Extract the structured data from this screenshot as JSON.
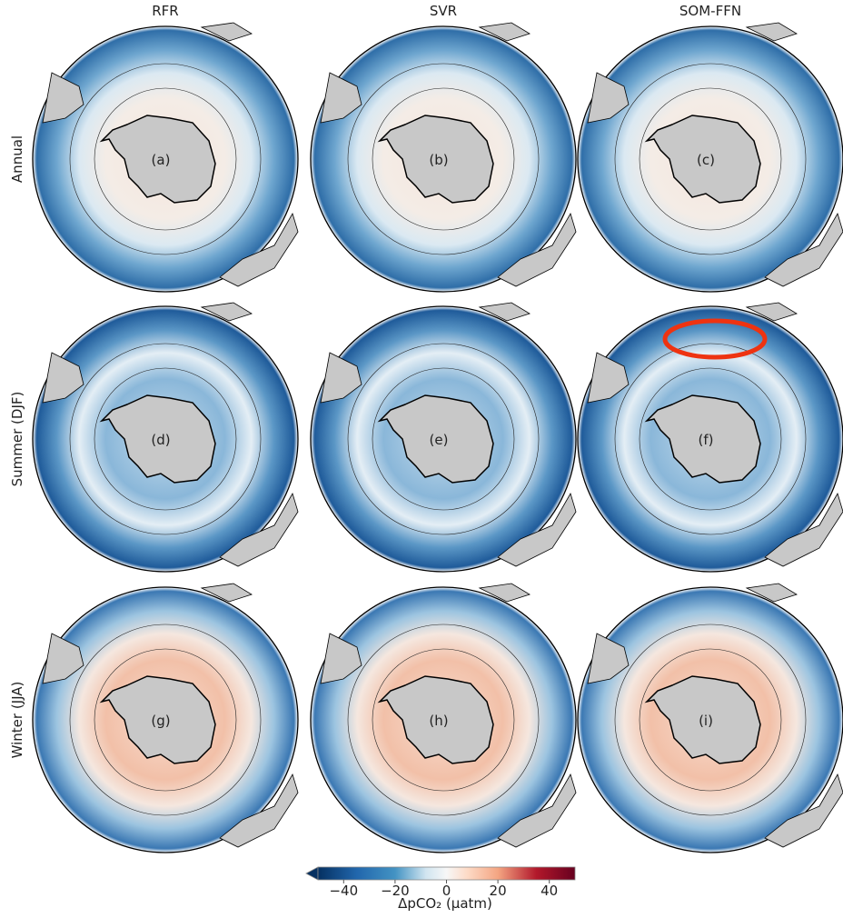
{
  "columns": [
    "RFR",
    "SVR",
    "SOM-FFN"
  ],
  "rows": [
    "Annual",
    "Summer (DJF)",
    "Winter (JJA)"
  ],
  "panels": [
    [
      "(a)",
      "(b)",
      "(c)"
    ],
    [
      "(d)",
      "(e)",
      "(f)"
    ],
    [
      "(g)",
      "(h)",
      "(i)"
    ]
  ],
  "colorbar": {
    "label": "ΔpCO₂ (μatm)",
    "lim": [
      -50,
      50
    ],
    "ticks": [
      {
        "value": -40,
        "label": "−40"
      },
      {
        "value": -20,
        "label": "−20"
      },
      0,
      20,
      40
    ]
  }
}
